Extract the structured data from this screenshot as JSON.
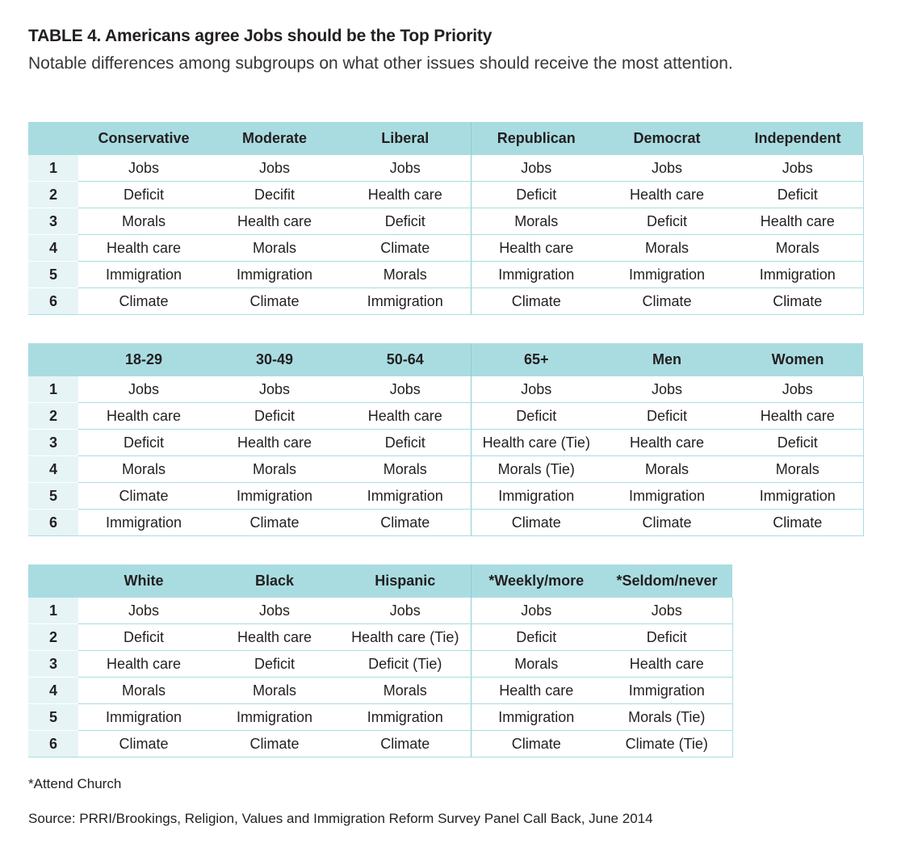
{
  "title": {
    "label": "TABLE 4.",
    "text": "Americans agree Jobs should be the Top Priority"
  },
  "subtitle": "Notable differences among subgroups on what other issues should receive the most attention.",
  "tables": [
    {
      "headers": [
        "",
        "Conservative",
        "Moderate",
        "Liberal",
        "Republican",
        "Democrat",
        "Independent"
      ],
      "rows": [
        [
          "1",
          "Jobs",
          "Jobs",
          "Jobs",
          "Jobs",
          "Jobs",
          "Jobs"
        ],
        [
          "2",
          "Deficit",
          "Decifit",
          "Health care",
          "Deficit",
          "Health care",
          "Deficit"
        ],
        [
          "3",
          "Morals",
          "Health care",
          "Deficit",
          "Morals",
          "Deficit",
          "Health care"
        ],
        [
          "4",
          "Health care",
          "Morals",
          "Climate",
          "Health care",
          "Morals",
          "Morals"
        ],
        [
          "5",
          "Immigration",
          "Immigration",
          "Morals",
          "Immigration",
          "Immigration",
          "Immigration"
        ],
        [
          "6",
          "Climate",
          "Climate",
          "Immigration",
          "Climate",
          "Climate",
          "Climate"
        ]
      ]
    },
    {
      "headers": [
        "",
        "18-29",
        "30-49",
        "50-64",
        "65+",
        "Men",
        "Women"
      ],
      "rows": [
        [
          "1",
          "Jobs",
          "Jobs",
          "Jobs",
          "Jobs",
          "Jobs",
          "Jobs"
        ],
        [
          "2",
          "Health care",
          "Deficit",
          "Health care",
          "Deficit",
          "Deficit",
          "Health care"
        ],
        [
          "3",
          "Deficit",
          "Health care",
          "Deficit",
          "Health care (Tie)",
          "Health care",
          "Deficit"
        ],
        [
          "4",
          "Morals",
          "Morals",
          "Morals",
          "Morals (Tie)",
          "Morals",
          "Morals"
        ],
        [
          "5",
          "Climate",
          "Immigration",
          "Immigration",
          "Immigration",
          "Immigration",
          "Immigration"
        ],
        [
          "6",
          "Immigration",
          "Climate",
          "Climate",
          "Climate",
          "Climate",
          "Climate"
        ]
      ]
    },
    {
      "headers": [
        "",
        "White",
        "Black",
        "Hispanic",
        "*Weekly/more",
        "*Seldom/never"
      ],
      "rows": [
        [
          "1",
          "Jobs",
          "Jobs",
          "Jobs",
          "Jobs",
          "Jobs"
        ],
        [
          "2",
          "Deficit",
          "Health care",
          "Health care (Tie)",
          "Deficit",
          "Deficit"
        ],
        [
          "3",
          "Health care",
          "Deficit",
          "Deficit (Tie)",
          "Morals",
          "Health care"
        ],
        [
          "4",
          "Morals",
          "Morals",
          "Morals",
          "Health care",
          "Immigration"
        ],
        [
          "5",
          "Immigration",
          "Immigration",
          "Immigration",
          "Immigration",
          "Morals (Tie)"
        ],
        [
          "6",
          "Climate",
          "Climate",
          "Climate",
          "Climate",
          "Climate (Tie)"
        ]
      ]
    }
  ],
  "footnote": "*Attend Church",
  "source": "Source: PRRI/Brookings, Religion, Values and Immigration Reform Survey Panel Call Back, June 2014"
}
